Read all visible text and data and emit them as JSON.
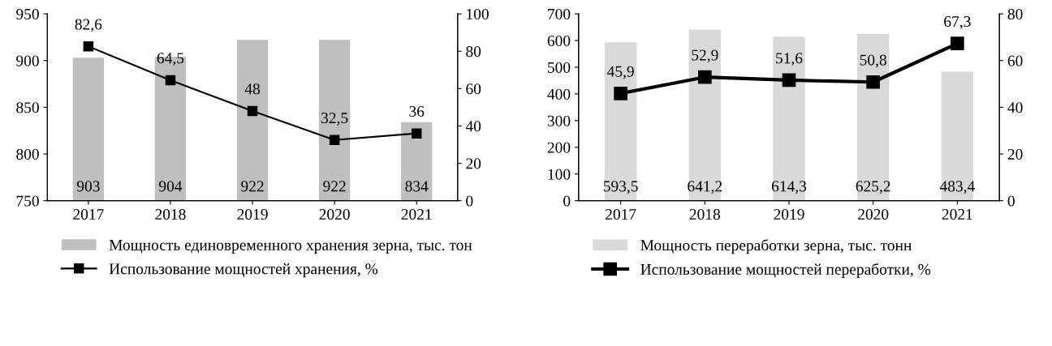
{
  "chart_data": [
    {
      "type": "bar",
      "categories": [
        "2017",
        "2018",
        "2019",
        "2020",
        "2021"
      ],
      "ylim": [
        750,
        950
      ],
      "yticks": [
        750,
        800,
        850,
        900,
        950
      ],
      "y2lim": [
        0,
        100
      ],
      "y2ticks": [
        0,
        20,
        40,
        60,
        80,
        100
      ],
      "legend": "bottom",
      "series": [
        {
          "name": "Мощность единовременного хранения зерна, тыс. тон",
          "color": "#bfbfbf",
          "values": [
            903,
            904,
            922,
            922,
            834
          ],
          "value_labels": [
            "903",
            "904",
            "922",
            "922",
            "834"
          ]
        },
        {
          "name": "Использование мощностей хранения, %",
          "type": "line",
          "axis": "y2",
          "color": "#000000",
          "marker": "square",
          "line_style": "solid",
          "values": [
            82.6,
            64.5,
            48,
            32.5,
            36
          ],
          "value_labels": [
            "82,6",
            "64,5",
            "48",
            "32,5",
            "36"
          ]
        }
      ]
    },
    {
      "type": "bar",
      "categories": [
        "2017",
        "2018",
        "2019",
        "2020",
        "2021"
      ],
      "ylim": [
        0,
        700
      ],
      "yticks": [
        0,
        100,
        200,
        300,
        400,
        500,
        600,
        700
      ],
      "y2lim": [
        0,
        80
      ],
      "y2ticks": [
        0,
        20,
        40,
        60,
        80
      ],
      "legend": "bottom",
      "series": [
        {
          "name": "Мощность переработки зерна, тыс. тонн",
          "color": "#d9d9d9",
          "values": [
            593.5,
            641.2,
            614.3,
            625.2,
            483.4
          ],
          "value_labels": [
            "593,5",
            "641,2",
            "614,3",
            "625,2",
            "483,4"
          ]
        },
        {
          "name": "Использование мощностей переработки, %",
          "type": "line",
          "axis": "y2",
          "color": "#000000",
          "marker": "square",
          "line_style": "solid",
          "values": [
            45.9,
            52.9,
            51.6,
            50.8,
            67.3
          ],
          "value_labels": [
            "45,9",
            "52,9",
            "51,6",
            "50,8",
            "67,3"
          ]
        }
      ]
    }
  ]
}
